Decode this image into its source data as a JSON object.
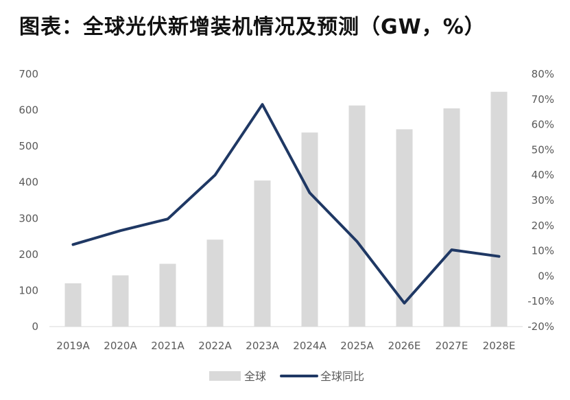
{
  "title": "图表：全球光伏新增装机情况及预测（GW，%）",
  "colors": {
    "bar": "#d9d9d9",
    "line": "#1f3864"
  },
  "chart_data": {
    "type": "bar",
    "categories": [
      "2019A",
      "2020A",
      "2021A",
      "2022A",
      "2023A",
      "2024A",
      "2025A",
      "2026E",
      "2027E",
      "2028E"
    ],
    "series": [
      {
        "name": "全球",
        "type": "bar",
        "axis": "left",
        "values": [
          120,
          142,
          174,
          241,
          405,
          538,
          613,
          547,
          605,
          651
        ]
      },
      {
        "name": "全球同比",
        "type": "line",
        "axis": "right",
        "unit": "%",
        "values": [
          12.5,
          18,
          22.6,
          40,
          68,
          33,
          13.7,
          -10.7,
          10.4,
          7.8
        ]
      }
    ],
    "y_left": {
      "min": 0,
      "max": 700,
      "step": 100,
      "ticks": [
        "0",
        "100",
        "200",
        "300",
        "400",
        "500",
        "600",
        "700"
      ]
    },
    "y_right": {
      "min": -20,
      "max": 80,
      "step": 10,
      "ticks": [
        "-20%",
        "-10%",
        "0%",
        "10%",
        "20%",
        "30%",
        "40%",
        "50%",
        "60%",
        "70%",
        "80%"
      ]
    },
    "grid": false,
    "legend": "bottom"
  }
}
